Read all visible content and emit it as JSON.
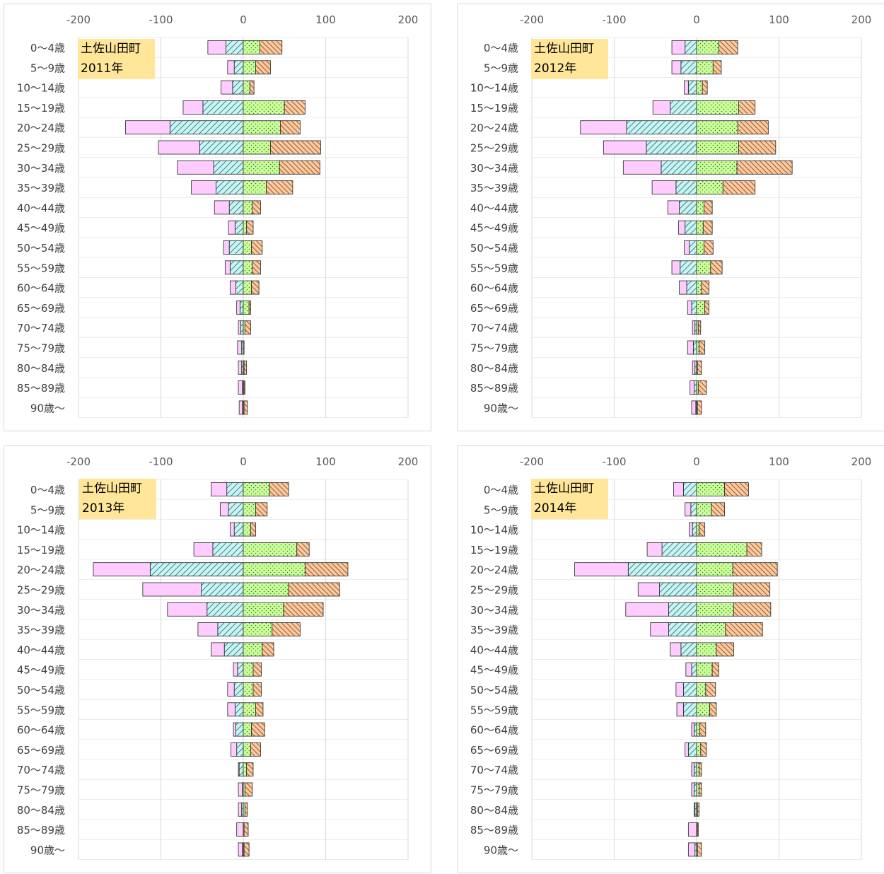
{
  "chart_data": [
    {
      "type": "bar",
      "orientation": "horizontal-stacked-diverging",
      "annotation": [
        "土佐山田町",
        "2011年"
      ],
      "xlim": [
        -200,
        200
      ],
      "xticks": [
        -200,
        -100,
        0,
        100,
        200
      ],
      "grid": true,
      "legend": "none",
      "categories": [
        "0〜4歳",
        "5〜9歳",
        "10〜14歳",
        "15〜19歳",
        "20〜24歳",
        "25〜29歳",
        "30〜34歳",
        "35〜39歳",
        "40〜44歳",
        "45〜49歳",
        "50〜54歳",
        "55〜59歳",
        "60〜64歳",
        "65〜69歳",
        "70〜74歳",
        "75〜79歳",
        "80〜84歳",
        "85〜89歳",
        "90歳〜"
      ],
      "series": [
        {
          "values": [
            -22,
            -8,
            -14,
            -24,
            -54,
            -50,
            -44,
            -30,
            -18,
            -8,
            -7,
            -6,
            -7,
            -4,
            -3,
            -5,
            -4,
            -5,
            -4
          ]
        },
        {
          "values": [
            -21,
            -11,
            -13,
            -49,
            -89,
            -53,
            -36,
            -33,
            -17,
            -10,
            -17,
            -16,
            -9,
            -4,
            -3,
            -2,
            -2,
            -1,
            -1
          ]
        },
        {
          "values": [
            20,
            15,
            8,
            50,
            45,
            33,
            44,
            28,
            11,
            4,
            10,
            11,
            10,
            7,
            2,
            1,
            1,
            1,
            1
          ]
        },
        {
          "values": [
            27,
            18,
            5,
            25,
            24,
            61,
            49,
            32,
            10,
            8,
            13,
            10,
            9,
            2,
            7,
            0,
            3,
            1,
            4
          ]
        }
      ]
    },
    {
      "type": "bar",
      "orientation": "horizontal-stacked-diverging",
      "annotation": [
        "土佐山田町",
        "2012年"
      ],
      "xlim": [
        -200,
        200
      ],
      "xticks": [
        -200,
        -100,
        0,
        100,
        200
      ],
      "grid": true,
      "legend": "none",
      "categories": [
        "0〜4歳",
        "5〜9歳",
        "10〜14歳",
        "15〜19歳",
        "20〜24歳",
        "25〜29歳",
        "30〜34歳",
        "35〜39歳",
        "40〜44歳",
        "45〜49歳",
        "50〜54歳",
        "55〜59歳",
        "60〜64歳",
        "65〜69歳",
        "70〜74歳",
        "75〜79歳",
        "80〜84歳",
        "85〜89歳",
        "90歳〜"
      ],
      "series": [
        {
          "values": [
            -16,
            -11,
            -5,
            -21,
            -56,
            -52,
            -46,
            -29,
            -14,
            -8,
            -6,
            -10,
            -9,
            -5,
            -3,
            -7,
            -3,
            -5,
            -5
          ]
        },
        {
          "values": [
            -14,
            -19,
            -10,
            -32,
            -85,
            -61,
            -43,
            -25,
            -21,
            -14,
            -9,
            -20,
            -12,
            -6,
            -2,
            -4,
            -2,
            -3,
            -1
          ]
        },
        {
          "values": [
            27,
            20,
            7,
            51,
            50,
            51,
            49,
            32,
            9,
            8,
            9,
            17,
            6,
            10,
            2,
            3,
            1,
            2,
            1
          ]
        },
        {
          "values": [
            23,
            10,
            6,
            20,
            37,
            45,
            67,
            39,
            10,
            11,
            11,
            14,
            9,
            5,
            3,
            7,
            5,
            10,
            5
          ]
        }
      ]
    },
    {
      "type": "bar",
      "orientation": "horizontal-stacked-diverging",
      "annotation": [
        "土佐山田町",
        "2013年"
      ],
      "xlim": [
        -200,
        200
      ],
      "xticks": [
        -200,
        -100,
        0,
        100,
        200
      ],
      "grid": true,
      "legend": "none",
      "categories": [
        "0〜4歳",
        "5〜9歳",
        "10〜14歳",
        "15〜19歳",
        "20〜24歳",
        "25〜29歳",
        "30〜34歳",
        "35〜39歳",
        "40〜44歳",
        "45〜49歳",
        "50〜54歳",
        "55〜59歳",
        "60〜64歳",
        "65〜69歳",
        "70〜74歳",
        "75〜79歳",
        "80〜84歳",
        "85〜89歳",
        "90歳〜"
      ],
      "series": [
        {
          "values": [
            -19,
            -10,
            -5,
            -23,
            -69,
            -71,
            -48,
            -24,
            -16,
            -5,
            -8,
            -9,
            -3,
            -7,
            -1,
            -5,
            -4,
            -8,
            -5
          ]
        },
        {
          "values": [
            -20,
            -18,
            -11,
            -37,
            -113,
            -51,
            -44,
            -31,
            -23,
            -7,
            -11,
            -10,
            -9,
            -8,
            -5,
            -1,
            -2,
            0,
            -1
          ]
        },
        {
          "values": [
            32,
            15,
            9,
            65,
            75,
            55,
            49,
            35,
            23,
            12,
            12,
            15,
            10,
            9,
            4,
            2,
            2,
            1,
            1
          ]
        },
        {
          "values": [
            23,
            14,
            6,
            15,
            52,
            62,
            48,
            34,
            14,
            10,
            10,
            9,
            16,
            12,
            8,
            9,
            3,
            5,
            6
          ]
        }
      ]
    },
    {
      "type": "bar",
      "orientation": "horizontal-stacked-diverging",
      "annotation": [
        "土佐山田町",
        "2014年"
      ],
      "xlim": [
        -200,
        200
      ],
      "xticks": [
        -200,
        -100,
        0,
        100,
        200
      ],
      "grid": true,
      "legend": "none",
      "categories": [
        "0〜4歳",
        "5〜9歳",
        "10〜14歳",
        "15〜19歳",
        "20〜24歳",
        "25〜29歳",
        "30〜34歳",
        "35〜39歳",
        "40〜44歳",
        "45〜49歳",
        "50〜54歳",
        "55〜59歳",
        "60〜64歳",
        "65〜69歳",
        "70〜74歳",
        "75〜79歳",
        "80〜84歳",
        "85〜89歳",
        "90歳〜"
      ],
      "series": [
        {
          "values": [
            -12,
            -7,
            -4,
            -18,
            -65,
            -26,
            -52,
            -22,
            -13,
            -7,
            -9,
            -8,
            -3,
            -4,
            -3,
            -3,
            -1,
            -10,
            -8
          ]
        },
        {
          "values": [
            -16,
            -7,
            -5,
            -42,
            -83,
            -45,
            -34,
            -34,
            -19,
            -6,
            -16,
            -16,
            -3,
            -10,
            -3,
            -3,
            -2,
            0,
            -2
          ]
        },
        {
          "values": [
            34,
            18,
            3,
            61,
            44,
            45,
            45,
            35,
            24,
            19,
            11,
            16,
            4,
            5,
            3,
            3,
            1,
            1,
            1
          ]
        },
        {
          "values": [
            29,
            16,
            7,
            18,
            54,
            44,
            45,
            45,
            21,
            8,
            12,
            8,
            7,
            7,
            3,
            3,
            2,
            1,
            5
          ]
        }
      ]
    }
  ]
}
